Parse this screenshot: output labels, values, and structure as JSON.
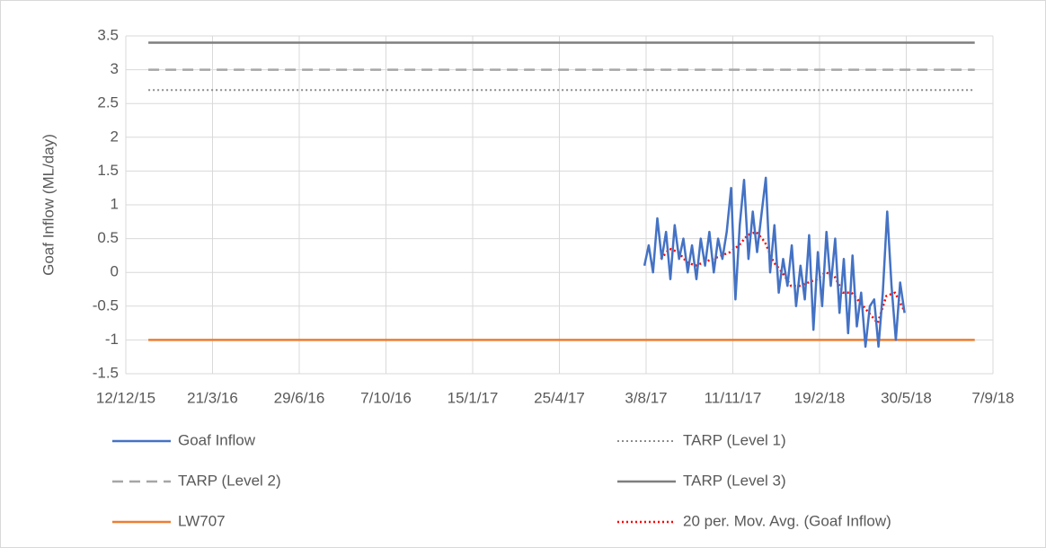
{
  "chart_data": {
    "type": "line",
    "y_label": "Goaf Inflow (ML/day)",
    "xlim": [
      "2015-12-12",
      "2018-09-07"
    ],
    "xticks": [
      {
        "value": "2015-12-12",
        "label": "12/12/15"
      },
      {
        "value": "2016-03-21",
        "label": "21/3/16"
      },
      {
        "value": "2016-06-29",
        "label": "29/6/16"
      },
      {
        "value": "2016-10-07",
        "label": "7/10/16"
      },
      {
        "value": "2017-01-15",
        "label": "15/1/17"
      },
      {
        "value": "2017-04-25",
        "label": "25/4/17"
      },
      {
        "value": "2017-08-03",
        "label": "3/8/17"
      },
      {
        "value": "2017-11-11",
        "label": "11/11/17"
      },
      {
        "value": "2018-02-19",
        "label": "19/2/18"
      },
      {
        "value": "2018-05-30",
        "label": "30/5/18"
      },
      {
        "value": "2018-09-07",
        "label": "7/9/18"
      }
    ],
    "ylim": [
      -1.5,
      3.5
    ],
    "yticks": [
      -1.5,
      -1,
      -0.5,
      0,
      0.5,
      1,
      1.5,
      2,
      2.5,
      3,
      3.5
    ],
    "grid": true,
    "legend": "bottom",
    "series": [
      {
        "name": "Goaf Inflow",
        "color": "#4472c4",
        "style": "solid",
        "width": 2.5,
        "x": [
          "2017-08-01",
          "2017-08-06",
          "2017-08-11",
          "2017-08-16",
          "2017-08-21",
          "2017-08-26",
          "2017-08-31",
          "2017-09-05",
          "2017-09-10",
          "2017-09-15",
          "2017-09-20",
          "2017-09-25",
          "2017-09-30",
          "2017-10-05",
          "2017-10-10",
          "2017-10-15",
          "2017-10-20",
          "2017-10-25",
          "2017-10-30",
          "2017-11-04",
          "2017-11-09",
          "2017-11-14",
          "2017-11-19",
          "2017-11-24",
          "2017-11-29",
          "2017-12-04",
          "2017-12-09",
          "2017-12-14",
          "2017-12-19",
          "2017-12-24",
          "2017-12-29",
          "2018-01-03",
          "2018-01-08",
          "2018-01-13",
          "2018-01-18",
          "2018-01-23",
          "2018-01-28",
          "2018-02-02",
          "2018-02-07",
          "2018-02-12",
          "2018-02-17",
          "2018-02-22",
          "2018-02-27",
          "2018-03-04",
          "2018-03-09",
          "2018-03-14",
          "2018-03-19",
          "2018-03-24",
          "2018-03-29",
          "2018-04-03",
          "2018-04-08",
          "2018-04-13",
          "2018-04-18",
          "2018-04-23",
          "2018-04-28",
          "2018-05-03",
          "2018-05-08",
          "2018-05-13",
          "2018-05-18",
          "2018-05-23",
          "2018-05-28"
        ],
        "values": [
          0.1,
          0.4,
          0.0,
          0.8,
          0.2,
          0.6,
          -0.1,
          0.7,
          0.2,
          0.5,
          0.0,
          0.4,
          -0.1,
          0.5,
          0.1,
          0.6,
          0.0,
          0.5,
          0.2,
          0.6,
          1.25,
          -0.4,
          0.7,
          1.37,
          0.2,
          0.9,
          0.3,
          0.85,
          1.4,
          0.0,
          0.7,
          -0.3,
          0.2,
          -0.2,
          0.4,
          -0.5,
          0.1,
          -0.4,
          0.55,
          -0.85,
          0.3,
          -0.5,
          0.6,
          -0.2,
          0.5,
          -0.6,
          0.2,
          -0.9,
          0.25,
          -0.8,
          -0.3,
          -1.1,
          -0.5,
          -0.4,
          -1.1,
          -0.3,
          0.9,
          -0.2,
          -1.0,
          -0.15,
          -0.6
        ]
      },
      {
        "name": "TARP (Level 1)",
        "color": "#8c8c8c",
        "style": "dotted",
        "width": 2,
        "x": [
          "2016-01-07",
          "2018-08-17"
        ],
        "values": [
          2.7,
          2.7
        ]
      },
      {
        "name": "TARP (Level 2)",
        "color": "#a6a6a6",
        "style": "dashed",
        "width": 2.5,
        "x": [
          "2016-01-07",
          "2018-08-17"
        ],
        "values": [
          3,
          3
        ]
      },
      {
        "name": "TARP (Level 3)",
        "color": "#7f7f7f",
        "style": "solid",
        "width": 2.5,
        "x": [
          "2016-01-07",
          "2018-08-17"
        ],
        "values": [
          3.4,
          3.4
        ]
      },
      {
        "name": "LW707",
        "color": "#ed7d31",
        "style": "solid",
        "width": 2.5,
        "x": [
          "2016-01-07",
          "2018-08-17"
        ],
        "values": [
          -1,
          -1
        ]
      },
      {
        "name": "20 per. Mov. Avg. (Goaf Inflow)",
        "color": "#ff0000",
        "style": "dotted",
        "width": 2.5,
        "x": [
          "2017-08-20",
          "2017-08-30",
          "2017-09-09",
          "2017-09-19",
          "2017-09-29",
          "2017-10-09",
          "2017-10-19",
          "2017-10-29",
          "2017-11-08",
          "2017-11-18",
          "2017-11-28",
          "2017-12-08",
          "2017-12-18",
          "2017-12-28",
          "2018-01-07",
          "2018-01-17",
          "2018-01-27",
          "2018-02-06",
          "2018-02-16",
          "2018-02-26",
          "2018-03-08",
          "2018-03-18",
          "2018-03-28",
          "2018-04-07",
          "2018-04-17",
          "2018-04-27",
          "2018-05-07",
          "2018-05-17",
          "2018-05-27"
        ],
        "values": [
          0.2,
          0.35,
          0.3,
          0.15,
          0.1,
          0.15,
          0.2,
          0.25,
          0.3,
          0.4,
          0.55,
          0.6,
          0.45,
          0.15,
          0.0,
          -0.2,
          -0.2,
          -0.15,
          -0.1,
          0.0,
          -0.05,
          -0.3,
          -0.3,
          -0.45,
          -0.6,
          -0.75,
          -0.35,
          -0.3,
          -0.55
        ]
      }
    ]
  }
}
